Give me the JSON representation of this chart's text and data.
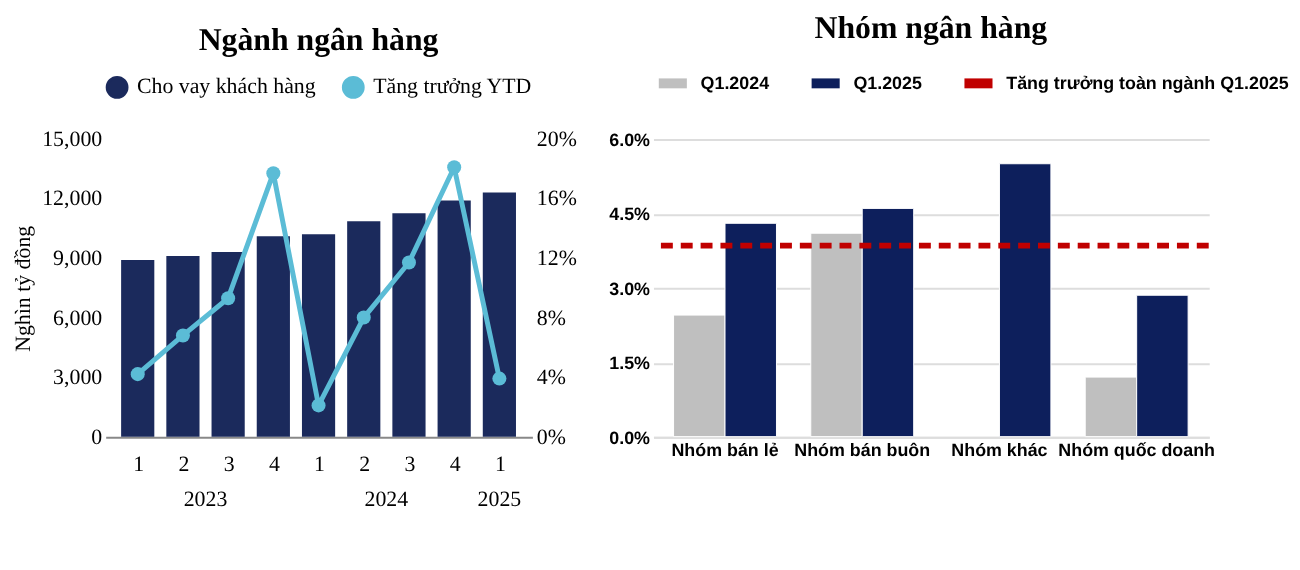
{
  "chart_data": [
    {
      "type": "bar",
      "title": "Ngành ngân hàng",
      "ylabel": "Nghìn tỷ đồng",
      "categories": [
        "1",
        "2",
        "3",
        "4",
        "1",
        "2",
        "3",
        "4",
        "1"
      ],
      "annotations": [
        "2023",
        "2024",
        "2025"
      ],
      "series": [
        {
          "name": "Cho vay khách hàng",
          "color": "#1b2a5c",
          "values": [
            8900,
            9100,
            9300,
            10100,
            10200,
            10850,
            11250,
            11900,
            12300
          ]
        },
        {
          "name": "Tăng trưởng YTD",
          "type": "line",
          "axis": "y2",
          "color": "#5bbcd6",
          "values": [
            4.2,
            6.8,
            9.3,
            17.7,
            2.1,
            8.0,
            11.7,
            18.1,
            3.9
          ]
        }
      ],
      "ylim": [
        0,
        15000
      ],
      "yticks": [
        {
          "value": 0,
          "label": "0"
        },
        {
          "value": 3000,
          "label": "3,000"
        },
        {
          "value": 6000,
          "label": "6,000"
        },
        {
          "value": 9000,
          "label": "9,000"
        },
        {
          "value": 12000,
          "label": "12,000"
        },
        {
          "value": 15000,
          "label": "15,000"
        }
      ],
      "y2lim": [
        0,
        20
      ],
      "y2ticks": [
        {
          "value": 0,
          "label": "0%"
        },
        {
          "value": 4,
          "label": "4%"
        },
        {
          "value": 8,
          "label": "8%"
        },
        {
          "value": 12,
          "label": "12%"
        },
        {
          "value": 16,
          "label": "16%"
        },
        {
          "value": 20,
          "label": "20%"
        }
      ],
      "marker": "circle",
      "legend": "top",
      "grid": false
    },
    {
      "type": "bar",
      "title": "Nhóm ngân hàng",
      "categories": [
        "Nhóm bán lẻ",
        "Nhóm bán buôn",
        "Nhóm khác",
        "Nhóm quốc doanh"
      ],
      "series": [
        {
          "name": "Q1.2024",
          "color": "#bfbfbf",
          "values": [
            2.45,
            4.1,
            null,
            1.2
          ]
        },
        {
          "name": "Q1.2025",
          "color": "#0d1f5c",
          "values": [
            4.3,
            4.6,
            5.5,
            2.85
          ]
        }
      ],
      "ref_lines": [
        {
          "axis": "y",
          "value": 3.85,
          "label": "Tăng trưởng toàn ngành Q1.2025",
          "color": "#c00000",
          "line_style": "dashed"
        }
      ],
      "ylim": [
        0,
        6
      ],
      "yticks": [
        {
          "value": 0,
          "label": "0.0%"
        },
        {
          "value": 1.5,
          "label": "1.5%"
        },
        {
          "value": 3,
          "label": "3.0%"
        },
        {
          "value": 4.5,
          "label": "4.5%"
        },
        {
          "value": 6,
          "label": "6.0%"
        }
      ],
      "grid": "y",
      "legend": "top"
    }
  ]
}
